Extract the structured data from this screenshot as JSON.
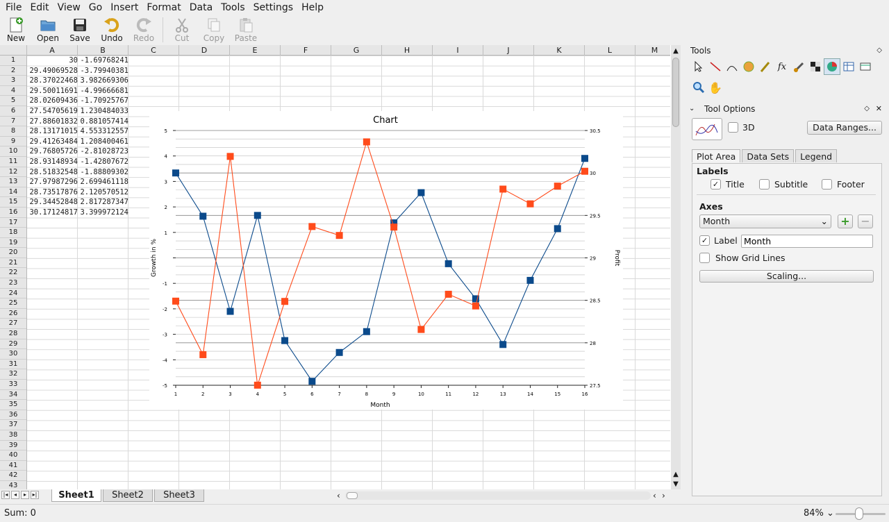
{
  "menu": [
    "File",
    "Edit",
    "View",
    "Go",
    "Insert",
    "Format",
    "Data",
    "Tools",
    "Settings",
    "Help"
  ],
  "toolbar": [
    {
      "label": "New",
      "icon": "new-document-icon",
      "enabled": true
    },
    {
      "label": "Open",
      "icon": "open-folder-icon",
      "enabled": true
    },
    {
      "label": "Save",
      "icon": "save-floppy-icon",
      "enabled": true
    },
    {
      "label": "Undo",
      "icon": "undo-icon",
      "enabled": true
    },
    {
      "label": "Redo",
      "icon": "redo-icon",
      "enabled": false
    },
    {
      "label": "Cut",
      "icon": "cut-scissors-icon",
      "enabled": false
    },
    {
      "label": "Copy",
      "icon": "copy-icon",
      "enabled": false
    },
    {
      "label": "Paste",
      "icon": "paste-icon",
      "enabled": false
    }
  ],
  "sheet": {
    "columns": [
      "A",
      "B",
      "C",
      "D",
      "E",
      "F",
      "G",
      "H",
      "I",
      "J",
      "K",
      "L",
      "M"
    ],
    "rows": [
      "1",
      "2",
      "3",
      "4",
      "5",
      "6",
      "7",
      "8",
      "9",
      "10",
      "11",
      "12",
      "13",
      "14",
      "15",
      "16",
      "17",
      "18",
      "19",
      "20",
      "21",
      "22",
      "23",
      "24",
      "25",
      "26",
      "27",
      "28",
      "29",
      "30",
      "31",
      "32",
      "33",
      "34",
      "35",
      "36",
      "37",
      "38",
      "39",
      "40",
      "41",
      "42",
      "43"
    ],
    "colA": [
      "30",
      "29.49069528",
      "28.37022468",
      "29.50011691",
      "28.02609436",
      "27.54705619",
      "27.88601832",
      "28.13171015",
      "29.41263484",
      "29.76805726",
      "28.93148934",
      "28.51832548",
      "27.97987296",
      "28.73517876",
      "29.34452848",
      "30.17124817"
    ],
    "colB": [
      "-1.69768241",
      "-3.79940381",
      "3.982669306",
      "-4.99666681",
      "-1.70925767",
      "1.230484033",
      "0.881057414",
      "4.553312557",
      "1.208400461",
      "-2.81028723",
      "-1.42807672",
      "-1.88809302",
      "2.699461118",
      "2.120570512",
      "2.817287347",
      "3.399972124"
    ]
  },
  "chart_data": {
    "type": "line",
    "title": "Chart",
    "xlabel": "Month",
    "ylabel": "Growth in %",
    "y2label": "Profit",
    "x": [
      1,
      2,
      3,
      4,
      5,
      6,
      7,
      8,
      9,
      10,
      11,
      12,
      13,
      14,
      15,
      16
    ],
    "ylim": [
      -5,
      5
    ],
    "y2lim": [
      27.5,
      30.5
    ],
    "yticks": [
      "5",
      "4",
      "3",
      "2",
      "1",
      "",
      "-1",
      "-2",
      "-3",
      "-4",
      "-5"
    ],
    "y2ticks": [
      "30.5",
      "30",
      "29.5",
      "29",
      "28.5",
      "28",
      "27.5"
    ],
    "series": [
      {
        "axis": "y2",
        "color": "#0b4a8b",
        "values": [
          30,
          29.49069528,
          28.37022468,
          29.50011691,
          28.02609436,
          27.54705619,
          27.88601832,
          28.13171015,
          29.41263484,
          29.76805726,
          28.93148934,
          28.51832548,
          27.97987296,
          28.73517876,
          29.34452848,
          30.17124817
        ]
      },
      {
        "axis": "y",
        "color": "#ff4b1b",
        "values": [
          -1.69768241,
          -3.79940381,
          3.982669306,
          -4.99666681,
          -1.70925767,
          1.230484033,
          0.881057414,
          4.553312557,
          1.208400461,
          -2.81028723,
          -1.42807672,
          -1.88809302,
          2.699461118,
          2.120570512,
          2.817287347,
          3.399972124
        ]
      }
    ],
    "grid": true
  },
  "sheet_tabs": [
    "Sheet1",
    "Sheet2",
    "Sheet3"
  ],
  "status": {
    "sum": "Sum: 0",
    "zoom": "84%"
  },
  "dock": {
    "tools_title": "Tools",
    "options_title": "Tool Options",
    "check_3d": "3D",
    "data_ranges": "Data Ranges...",
    "tabs": [
      "Plot Area",
      "Data Sets",
      "Legend"
    ],
    "labels_heading": "Labels",
    "title_label": "Title",
    "subtitle_label": "Subtitle",
    "footer_label": "Footer",
    "axes_heading": "Axes",
    "axis_select": "Month",
    "label_check": "Label",
    "label_value": "Month",
    "grid_lines": "Show Grid Lines",
    "scaling": "Scaling..."
  }
}
